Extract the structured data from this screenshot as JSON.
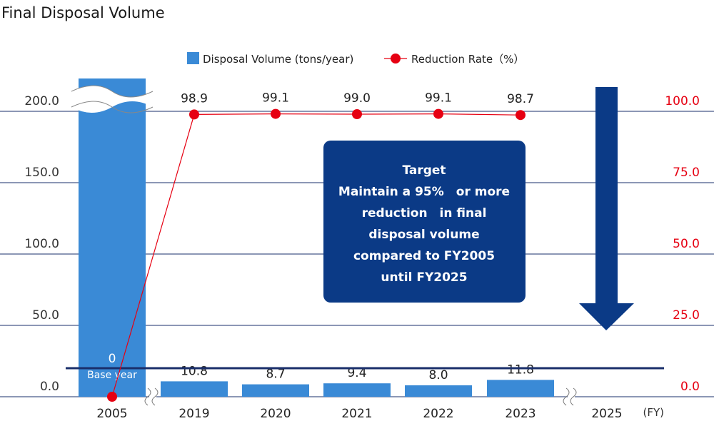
{
  "title": "Final Disposal Volume",
  "colors": {
    "bar": "#3a8ad6",
    "line": "#e60012",
    "grid": "#1a2f6b",
    "target": "#0b3a86",
    "right_axis": "#e60012"
  },
  "chart_data": {
    "type": "bar",
    "title": "Final Disposal Volume",
    "x_unit": "(FY)",
    "categories": [
      "2005",
      "2019",
      "2020",
      "2021",
      "2022",
      "2023",
      "2025"
    ],
    "series": [
      {
        "name": "Disposal Volume (tons/year)",
        "type": "bar",
        "axis": "left",
        "values": [
          null,
          10.8,
          8.7,
          9.4,
          8.0,
          11.8,
          null
        ],
        "labels": [
          "0",
          "10.8",
          "8.7",
          "9.4",
          "8.0",
          "11.8",
          ""
        ]
      },
      {
        "name": "Reduction Rate（%）",
        "type": "line",
        "axis": "right",
        "values": [
          0,
          98.9,
          99.1,
          99.0,
          99.1,
          98.7,
          null
        ],
        "labels": [
          "",
          "98.9",
          "99.1",
          "99.0",
          "99.1",
          "98.7",
          ""
        ]
      }
    ],
    "base_year_label": "Base year",
    "y_left": {
      "ticks": [
        "200.0",
        "150.0",
        "100.0",
        "50.0",
        "0.0"
      ],
      "ylim": [
        0,
        200
      ]
    },
    "y_right": {
      "ticks": [
        "100.0",
        "75.0",
        "50.0",
        "25.0",
        "0.0"
      ],
      "ylim": [
        0,
        100
      ]
    },
    "target_level": 20,
    "axis_breaks": true,
    "grid": true,
    "legend_position": "top-center"
  },
  "target_box": {
    "lines": [
      "Target",
      "Maintain a 95%　or more",
      "reduction　in final",
      "disposal volume",
      "compared to FY2005",
      "until FY2025"
    ]
  }
}
